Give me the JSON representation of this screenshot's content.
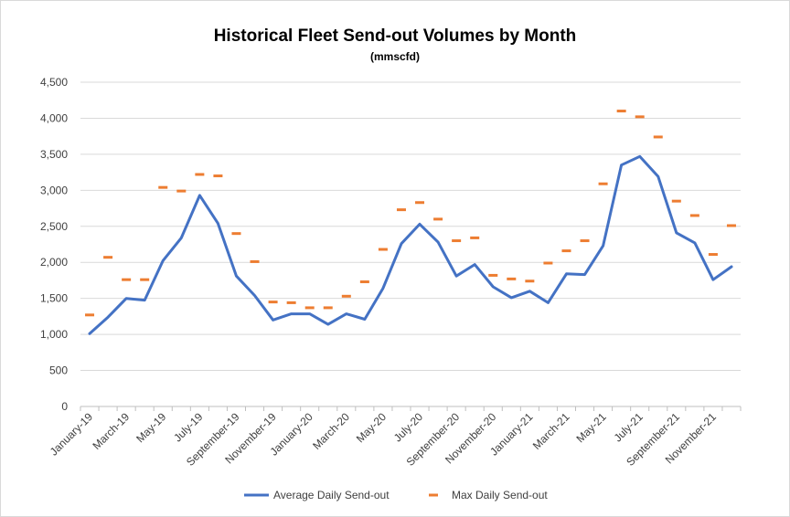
{
  "chart_data": {
    "type": "line",
    "title": "Historical Fleet Send-out Volumes by Month",
    "subtitle": "(mmscfd)",
    "xlabel": "",
    "ylabel": "",
    "ylim": [
      0,
      4500
    ],
    "ytick_step": 500,
    "grid": true,
    "legend_position": "bottom",
    "tick_labels": [
      "January-19",
      "March-19",
      "May-19",
      "July-19",
      "September-19",
      "November-19",
      "January-20",
      "March-20",
      "May-20",
      "July-20",
      "September-20",
      "November-20",
      "January-21",
      "March-21",
      "May-21",
      "July-21",
      "September-21",
      "November-21"
    ],
    "categories": [
      "Jan-19",
      "Feb-19",
      "Mar-19",
      "Apr-19",
      "May-19",
      "Jun-19",
      "Jul-19",
      "Aug-19",
      "Sep-19",
      "Oct-19",
      "Nov-19",
      "Dec-19",
      "Jan-20",
      "Feb-20",
      "Mar-20",
      "Apr-20",
      "May-20",
      "Jun-20",
      "Jul-20",
      "Aug-20",
      "Sep-20",
      "Oct-20",
      "Nov-20",
      "Dec-20",
      "Jan-21",
      "Feb-21",
      "Mar-21",
      "Apr-21",
      "May-21",
      "Jun-21",
      "Jul-21",
      "Aug-21",
      "Sep-21",
      "Oct-21",
      "Nov-21",
      "Dec-21"
    ],
    "series": [
      {
        "name": "Average Daily Send-out",
        "style": "line",
        "color": "#4472c4",
        "values": [
          1010,
          1240,
          1500,
          1475,
          2025,
          2340,
          2930,
          2540,
          1810,
          1540,
          1200,
          1285,
          1285,
          1140,
          1285,
          1210,
          1640,
          2260,
          2530,
          2280,
          1810,
          1970,
          1660,
          1510,
          1600,
          1440,
          1840,
          1830,
          2230,
          3350,
          3470,
          3190,
          2410,
          2270,
          1760,
          1940
        ]
      },
      {
        "name": "Max Daily Send-out",
        "style": "dash-marker",
        "color": "#ed7d31",
        "values": [
          1270,
          2070,
          1760,
          1760,
          3040,
          2990,
          3220,
          3200,
          2400,
          2010,
          1450,
          1440,
          1370,
          1370,
          1530,
          1730,
          2180,
          2730,
          2830,
          2600,
          2300,
          2340,
          1820,
          1770,
          1740,
          1990,
          2160,
          2300,
          3090,
          4100,
          4020,
          3740,
          2850,
          2650,
          2110,
          2510
        ]
      }
    ]
  }
}
